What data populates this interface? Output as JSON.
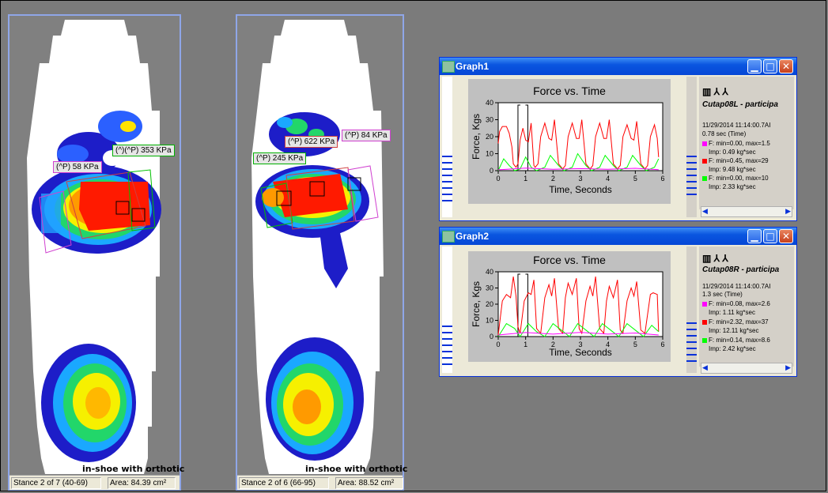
{
  "left_pane": {
    "status_stance": "Stance 2 of 7 (40-69)",
    "status_area": "Area: 84.39 cm²",
    "caption": "in-shoe with orthotic",
    "labels": [
      "(^)(^P) 353 KPa",
      "(^P) 58 KPa"
    ]
  },
  "right_pane": {
    "status_stance": "Stance 2 of 6 (66-95)",
    "status_area": "Area: 88.52 cm²",
    "caption": "in-shoe with orthotic",
    "labels": [
      "(^P) 622 KPa",
      "(^P) 84 KPa",
      "(^P) 245 KPa"
    ]
  },
  "graph1": {
    "window_title": "Graph1",
    "sidebar": {
      "title": "Cutap08L - participa",
      "datetime": "11/29/2014 11:14:00.7AI",
      "duration": "0.78 sec (Time)",
      "series_stats": [
        {
          "text": "F: min=0.00, max=1.5",
          "imp": "Imp: 0.49 kg*sec",
          "color": "#ff00ff"
        },
        {
          "text": "F: min=0.45, max=29",
          "imp": "Imp: 9.48 kg*sec",
          "color": "#ff0000"
        },
        {
          "text": "F: min=0.00, max=10",
          "imp": "Imp: 2.33 kg*sec",
          "color": "#00ff00"
        }
      ]
    }
  },
  "graph2": {
    "window_title": "Graph2",
    "sidebar": {
      "title": "Cutap08R - participa",
      "datetime": "11/29/2014 11:14:00.7AI",
      "duration": "1.3 sec (Time)",
      "series_stats": [
        {
          "text": "F: min=0.08, max=2.6",
          "imp": "Imp: 1.11 kg*sec",
          "color": "#ff00ff"
        },
        {
          "text": "F: min=2.32, max=37",
          "imp": "Imp: 12.11 kg*sec",
          "color": "#ff0000"
        },
        {
          "text": "F: min=0.14, max=8.6",
          "imp": "Imp: 2.42 kg*sec",
          "color": "#00ff00"
        }
      ]
    }
  },
  "chart_data": [
    {
      "type": "line",
      "title": "Force vs. Time",
      "xlabel": "Time, Seconds",
      "ylabel": "Force, Kgs",
      "xlim": [
        0,
        6
      ],
      "ylim": [
        0,
        40
      ],
      "xticks": [
        "0",
        "1",
        "2",
        "3",
        "4",
        "5",
        "6"
      ],
      "yticks": [
        "0",
        "10",
        "20",
        "30",
        "40"
      ],
      "grid": false,
      "series": [
        {
          "color": "#ff0000",
          "x": [
            0,
            0.05,
            0.15,
            0.3,
            0.4,
            0.5,
            0.55,
            0.65,
            0.72,
            0.8,
            0.9,
            1.0,
            1.1,
            1.2,
            1.3,
            1.35,
            1.45,
            1.55,
            1.7,
            1.85,
            1.95,
            2.05,
            2.2,
            2.35,
            2.45,
            2.55,
            2.7,
            2.85,
            2.95,
            3.05,
            3.2,
            3.35,
            3.45,
            3.55,
            3.7,
            3.85,
            3.95,
            4.05,
            4.2,
            4.35,
            4.45,
            4.55,
            4.7,
            4.85,
            4.95,
            5.05,
            5.2,
            5.35,
            5.45,
            5.55,
            5.7,
            5.8,
            5.85
          ],
          "y": [
            16,
            23,
            26,
            26,
            22,
            14,
            4,
            2,
            4,
            18,
            25,
            18,
            17,
            28,
            3,
            2,
            4,
            20,
            28,
            19,
            18,
            30,
            4,
            1,
            3,
            20,
            28,
            19,
            19,
            30,
            4,
            1,
            3,
            20,
            28,
            19,
            19,
            30,
            4,
            1,
            3,
            20,
            27,
            19,
            18,
            29,
            4,
            1,
            3,
            20,
            27,
            19,
            8
          ]
        },
        {
          "color": "#00ff00",
          "x": [
            0,
            0.2,
            0.4,
            0.6,
            0.8,
            1.0,
            1.2,
            1.4,
            1.7,
            1.9,
            2.2,
            2.4,
            2.7,
            2.9,
            3.2,
            3.4,
            3.7,
            3.9,
            4.2,
            4.4,
            4.7,
            4.9,
            5.2,
            5.4,
            5.7,
            5.85
          ],
          "y": [
            0,
            7,
            3,
            0,
            1,
            8,
            2,
            0,
            2,
            9,
            3,
            0,
            2,
            10,
            3,
            0,
            2,
            9,
            3,
            0,
            2,
            9,
            3,
            0,
            2,
            7
          ]
        },
        {
          "color": "#ff00ff",
          "x": [
            0,
            1,
            2,
            3,
            4,
            5,
            5.85
          ],
          "y": [
            0.5,
            1.5,
            0.8,
            1.2,
            0.8,
            1.4,
            0.6
          ]
        }
      ]
    },
    {
      "type": "line",
      "title": "Force vs. Time",
      "xlabel": "Time, Seconds",
      "ylabel": "Force, Kgs",
      "xlim": [
        0,
        6
      ],
      "ylim": [
        0,
        40
      ],
      "xticks": [
        "0",
        "1",
        "2",
        "3",
        "4",
        "5",
        "6"
      ],
      "yticks": [
        "0",
        "10",
        "20",
        "30",
        "40"
      ],
      "grid": false,
      "series": [
        {
          "color": "#ff0000",
          "x": [
            0,
            0.15,
            0.3,
            0.45,
            0.55,
            0.65,
            0.72,
            0.8,
            0.95,
            1.1,
            1.2,
            1.3,
            1.4,
            1.55,
            1.7,
            1.85,
            1.95,
            2.05,
            2.2,
            2.35,
            2.45,
            2.55,
            2.7,
            2.85,
            2.95,
            3.05,
            3.2,
            3.35,
            3.45,
            3.55,
            3.7,
            3.85,
            3.95,
            4.05,
            4.2,
            4.35,
            4.45,
            4.55,
            4.7,
            4.85,
            4.95,
            5.05,
            5.2,
            5.35,
            5.55,
            5.65,
            5.8,
            5.85
          ],
          "y": [
            1,
            22,
            26,
            24,
            37,
            25,
            6,
            2,
            22,
            27,
            26,
            35,
            5,
            2,
            24,
            32,
            25,
            36,
            5,
            2,
            24,
            33,
            26,
            36,
            5,
            2,
            22,
            31,
            25,
            37,
            5,
            2,
            22,
            31,
            24,
            35,
            4,
            2,
            22,
            30,
            25,
            34,
            4,
            2,
            26,
            27,
            26,
            3
          ]
        },
        {
          "color": "#00ff00",
          "x": [
            0,
            0.3,
            0.6,
            0.8,
            1.1,
            1.4,
            1.7,
            2.0,
            2.3,
            2.6,
            2.9,
            3.2,
            3.5,
            3.8,
            4.1,
            4.4,
            4.7,
            5.0,
            5.3,
            5.6,
            5.85
          ],
          "y": [
            0,
            8,
            5,
            0,
            8,
            3,
            0,
            8,
            4,
            0,
            8,
            4,
            0,
            8,
            4,
            0,
            8,
            4,
            0,
            7,
            3
          ]
        },
        {
          "color": "#ff00ff",
          "x": [
            0,
            1,
            2,
            3,
            4,
            5,
            5.85
          ],
          "y": [
            1,
            2.5,
            1.5,
            2.6,
            1.5,
            2.2,
            1
          ]
        }
      ]
    }
  ]
}
